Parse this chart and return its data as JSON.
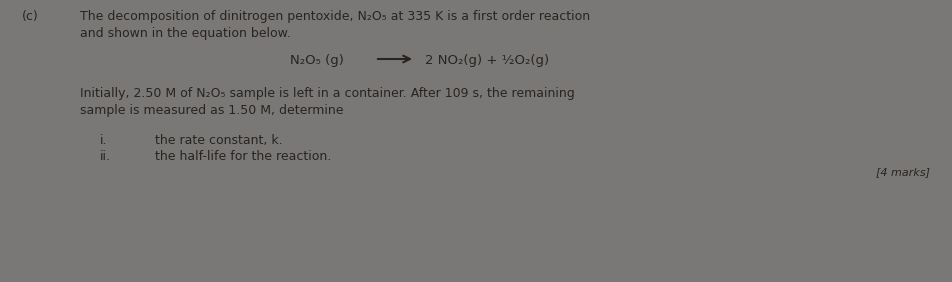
{
  "bg_color": "#7a7876",
  "text_color": "#2a2420",
  "label_c": "(c)",
  "line1": "The decomposition of dinitrogen pentoxide, N₂O₅ at 335 K is a first order reaction",
  "line2": "and shown in the equation below.",
  "equation_left": "N₂O₅ (g)",
  "equation_right": "2 NO₂(g) + ½O₂(g)",
  "line3": "Initially, 2.50 M of N₂O₅ sample is left in a container. After 109 s, the remaining",
  "line4": "sample is measured as 1.50 M, determine",
  "item_i_label": "i.",
  "item_i_text": "the rate constant, k.",
  "item_ii_label": "ii.",
  "item_ii_text": "the half-life for the reaction.",
  "marks": "[4 marks]",
  "fontsize_main": 9.0,
  "fontsize_eq": 9.5,
  "fontsize_marks": 8.0
}
